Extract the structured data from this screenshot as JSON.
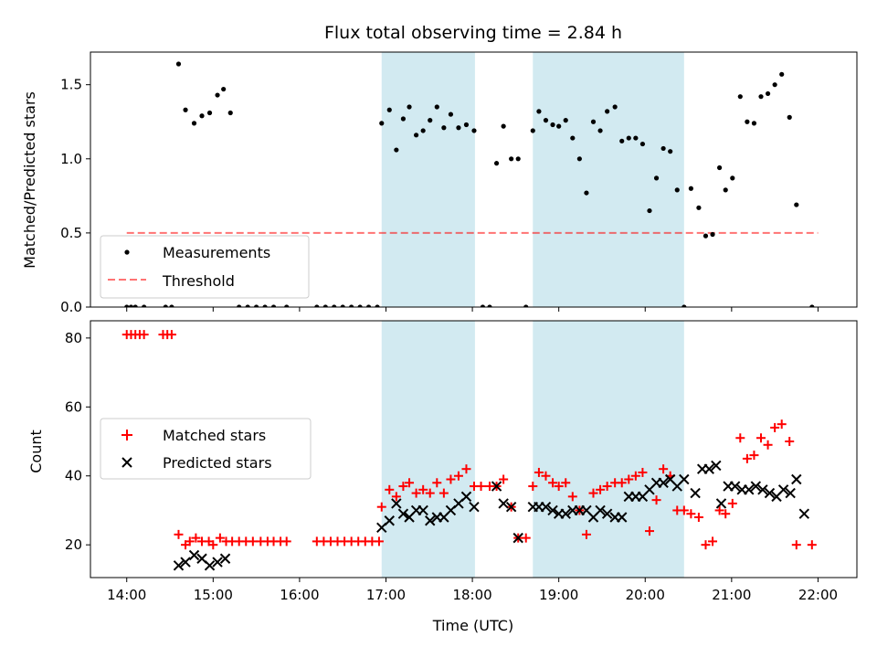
{
  "title": "Flux total observing time = 2.84 h",
  "colors": {
    "shade": "#add8e6",
    "measurement": "#000000",
    "threshold": "#ff0000",
    "matched": "#ff0000",
    "predicted": "#000000"
  },
  "chart_data": [
    {
      "type": "scatter",
      "panel": "top",
      "title": "Flux total observing time = 2.84 h",
      "xlabel": "",
      "ylabel": "Matched/Predicted stars",
      "xlim": [
        13.58,
        22.45
      ],
      "ylim": [
        0,
        1.72
      ],
      "yticks": [
        0.0,
        0.5,
        1.0,
        1.5
      ],
      "ytick_labels": [
        "0.0",
        "0.5",
        "1.0",
        "1.5"
      ],
      "shaded_time_ranges": [
        [
          16.95,
          18.03
        ],
        [
          18.7,
          20.45
        ]
      ],
      "legend_position": "lower-left",
      "series": [
        {
          "name": "Measurements",
          "marker": "dot",
          "points": [
            [
              14.0,
              0
            ],
            [
              14.05,
              0
            ],
            [
              14.1,
              0
            ],
            [
              14.2,
              0
            ],
            [
              14.45,
              0
            ],
            [
              14.52,
              0
            ],
            [
              14.6,
              1.64
            ],
            [
              14.68,
              1.33
            ],
            [
              14.78,
              1.24
            ],
            [
              14.87,
              1.29
            ],
            [
              14.96,
              1.31
            ],
            [
              15.05,
              1.43
            ],
            [
              15.12,
              1.47
            ],
            [
              15.2,
              1.31
            ],
            [
              15.3,
              0
            ],
            [
              15.4,
              0
            ],
            [
              15.5,
              0
            ],
            [
              15.6,
              0
            ],
            [
              15.7,
              0
            ],
            [
              15.85,
              0
            ],
            [
              16.2,
              0
            ],
            [
              16.3,
              0
            ],
            [
              16.4,
              0
            ],
            [
              16.5,
              0
            ],
            [
              16.6,
              0
            ],
            [
              16.7,
              0
            ],
            [
              16.8,
              0
            ],
            [
              16.9,
              0
            ],
            [
              16.95,
              1.24
            ],
            [
              17.04,
              1.33
            ],
            [
              17.12,
              1.06
            ],
            [
              17.2,
              1.27
            ],
            [
              17.27,
              1.35
            ],
            [
              17.35,
              1.16
            ],
            [
              17.43,
              1.19
            ],
            [
              17.51,
              1.26
            ],
            [
              17.59,
              1.35
            ],
            [
              17.67,
              1.21
            ],
            [
              17.75,
              1.3
            ],
            [
              17.84,
              1.21
            ],
            [
              17.93,
              1.23
            ],
            [
              18.02,
              1.19
            ],
            [
              18.12,
              0
            ],
            [
              18.2,
              0
            ],
            [
              18.28,
              0.97
            ],
            [
              18.36,
              1.22
            ],
            [
              18.45,
              1.0
            ],
            [
              18.53,
              1.0
            ],
            [
              18.62,
              0
            ],
            [
              18.7,
              1.19
            ],
            [
              18.77,
              1.32
            ],
            [
              18.85,
              1.26
            ],
            [
              18.93,
              1.23
            ],
            [
              19.0,
              1.22
            ],
            [
              19.08,
              1.26
            ],
            [
              19.16,
              1.14
            ],
            [
              19.24,
              1.0
            ],
            [
              19.32,
              0.77
            ],
            [
              19.4,
              1.25
            ],
            [
              19.48,
              1.19
            ],
            [
              19.56,
              1.32
            ],
            [
              19.65,
              1.35
            ],
            [
              19.73,
              1.12
            ],
            [
              19.81,
              1.14
            ],
            [
              19.89,
              1.14
            ],
            [
              19.97,
              1.1
            ],
            [
              20.05,
              0.65
            ],
            [
              20.13,
              0.87
            ],
            [
              20.21,
              1.07
            ],
            [
              20.29,
              1.05
            ],
            [
              20.37,
              0.79
            ],
            [
              20.45,
              0
            ],
            [
              20.53,
              0.8
            ],
            [
              20.62,
              0.67
            ],
            [
              20.7,
              0.48
            ],
            [
              20.78,
              0.49
            ],
            [
              20.86,
              0.94
            ],
            [
              20.93,
              0.79
            ],
            [
              21.01,
              0.87
            ],
            [
              21.1,
              1.42
            ],
            [
              21.18,
              1.25
            ],
            [
              21.26,
              1.24
            ],
            [
              21.34,
              1.42
            ],
            [
              21.42,
              1.44
            ],
            [
              21.5,
              1.5
            ],
            [
              21.58,
              1.57
            ],
            [
              21.67,
              1.28
            ],
            [
              21.75,
              0.69
            ],
            [
              21.93,
              0
            ]
          ]
        },
        {
          "name": "Threshold",
          "style": "dashed",
          "points": [
            [
              14.0,
              0.5
            ],
            [
              22.0,
              0.5
            ]
          ]
        }
      ]
    },
    {
      "type": "scatter",
      "panel": "bottom",
      "title": "",
      "xlabel": "Time (UTC)",
      "ylabel": "Count",
      "xlim": [
        13.58,
        22.45
      ],
      "ylim": [
        10.5,
        85
      ],
      "yticks": [
        20,
        40,
        60,
        80
      ],
      "ytick_labels": [
        "20",
        "40",
        "60",
        "80"
      ],
      "xticks": [
        14,
        15,
        16,
        17,
        18,
        19,
        20,
        21,
        22
      ],
      "xtick_labels": [
        "14:00",
        "15:00",
        "16:00",
        "17:00",
        "18:00",
        "19:00",
        "20:00",
        "21:00",
        "22:00"
      ],
      "shaded_time_ranges": [
        [
          16.95,
          18.03
        ],
        [
          18.7,
          20.45
        ]
      ],
      "legend_position": "center-left",
      "series": [
        {
          "name": "Matched stars",
          "marker": "plus",
          "points": [
            [
              14.0,
              81
            ],
            [
              14.05,
              81
            ],
            [
              14.1,
              81
            ],
            [
              14.15,
              81
            ],
            [
              14.2,
              81
            ],
            [
              14.42,
              81
            ],
            [
              14.47,
              81
            ],
            [
              14.52,
              81
            ],
            [
              14.6,
              23
            ],
            [
              14.68,
              20
            ],
            [
              14.73,
              21
            ],
            [
              14.8,
              22
            ],
            [
              14.87,
              21
            ],
            [
              14.95,
              21
            ],
            [
              15.0,
              20
            ],
            [
              15.08,
              22
            ],
            [
              15.15,
              21
            ],
            [
              15.22,
              21
            ],
            [
              15.3,
              21
            ],
            [
              15.38,
              21
            ],
            [
              15.46,
              21
            ],
            [
              15.55,
              21
            ],
            [
              15.63,
              21
            ],
            [
              15.7,
              21
            ],
            [
              15.78,
              21
            ],
            [
              15.85,
              21
            ],
            [
              16.2,
              21
            ],
            [
              16.28,
              21
            ],
            [
              16.36,
              21
            ],
            [
              16.44,
              21
            ],
            [
              16.52,
              21
            ],
            [
              16.6,
              21
            ],
            [
              16.68,
              21
            ],
            [
              16.76,
              21
            ],
            [
              16.84,
              21
            ],
            [
              16.92,
              21
            ],
            [
              16.95,
              31
            ],
            [
              17.04,
              36
            ],
            [
              17.12,
              34
            ],
            [
              17.2,
              37
            ],
            [
              17.27,
              38
            ],
            [
              17.35,
              35
            ],
            [
              17.43,
              36
            ],
            [
              17.51,
              35
            ],
            [
              17.59,
              38
            ],
            [
              17.67,
              35
            ],
            [
              17.75,
              39
            ],
            [
              17.84,
              40
            ],
            [
              17.93,
              42
            ],
            [
              18.02,
              37
            ],
            [
              18.1,
              37
            ],
            [
              18.2,
              37
            ],
            [
              18.28,
              37
            ],
            [
              18.36,
              39
            ],
            [
              18.45,
              31
            ],
            [
              18.53,
              22
            ],
            [
              18.62,
              22
            ],
            [
              18.7,
              37
            ],
            [
              18.77,
              41
            ],
            [
              18.85,
              40
            ],
            [
              18.93,
              38
            ],
            [
              19.0,
              37
            ],
            [
              19.08,
              38
            ],
            [
              19.16,
              34
            ],
            [
              19.24,
              30
            ],
            [
              19.32,
              23
            ],
            [
              19.4,
              35
            ],
            [
              19.48,
              36
            ],
            [
              19.56,
              37
            ],
            [
              19.65,
              38
            ],
            [
              19.73,
              38
            ],
            [
              19.81,
              39
            ],
            [
              19.89,
              40
            ],
            [
              19.97,
              41
            ],
            [
              20.05,
              24
            ],
            [
              20.13,
              33
            ],
            [
              20.21,
              42
            ],
            [
              20.29,
              40
            ],
            [
              20.37,
              30
            ],
            [
              20.45,
              30
            ],
            [
              20.53,
              29
            ],
            [
              20.62,
              28
            ],
            [
              20.7,
              20
            ],
            [
              20.78,
              21
            ],
            [
              20.86,
              30
            ],
            [
              20.93,
              29
            ],
            [
              21.01,
              32
            ],
            [
              21.1,
              51
            ],
            [
              21.18,
              45
            ],
            [
              21.26,
              46
            ],
            [
              21.34,
              51
            ],
            [
              21.42,
              49
            ],
            [
              21.5,
              54
            ],
            [
              21.58,
              55
            ],
            [
              21.67,
              50
            ],
            [
              21.75,
              20
            ],
            [
              21.93,
              20
            ]
          ]
        },
        {
          "name": "Predicted stars",
          "marker": "x",
          "points": [
            [
              14.6,
              14
            ],
            [
              14.68,
              15
            ],
            [
              14.78,
              17
            ],
            [
              14.87,
              16
            ],
            [
              14.96,
              14
            ],
            [
              15.05,
              15
            ],
            [
              15.14,
              16
            ],
            [
              16.95,
              25
            ],
            [
              17.04,
              27
            ],
            [
              17.12,
              32
            ],
            [
              17.2,
              29
            ],
            [
              17.27,
              28
            ],
            [
              17.35,
              30
            ],
            [
              17.43,
              30
            ],
            [
              17.51,
              27
            ],
            [
              17.59,
              28
            ],
            [
              17.67,
              28
            ],
            [
              17.75,
              30
            ],
            [
              17.84,
              32
            ],
            [
              17.93,
              34
            ],
            [
              18.02,
              31
            ],
            [
              18.28,
              37
            ],
            [
              18.36,
              32
            ],
            [
              18.45,
              31
            ],
            [
              18.53,
              22
            ],
            [
              18.7,
              31
            ],
            [
              18.77,
              31
            ],
            [
              18.85,
              31
            ],
            [
              18.93,
              30
            ],
            [
              19.0,
              29
            ],
            [
              19.08,
              29
            ],
            [
              19.16,
              30
            ],
            [
              19.24,
              30
            ],
            [
              19.32,
              30
            ],
            [
              19.4,
              28
            ],
            [
              19.48,
              30
            ],
            [
              19.56,
              29
            ],
            [
              19.65,
              28
            ],
            [
              19.73,
              28
            ],
            [
              19.81,
              34
            ],
            [
              19.89,
              34
            ],
            [
              19.97,
              34
            ],
            [
              20.05,
              36
            ],
            [
              20.13,
              38
            ],
            [
              20.21,
              38
            ],
            [
              20.29,
              39
            ],
            [
              20.37,
              37
            ],
            [
              20.45,
              39
            ],
            [
              20.58,
              35
            ],
            [
              20.66,
              42
            ],
            [
              20.74,
              42
            ],
            [
              20.82,
              43
            ],
            [
              20.88,
              32
            ],
            [
              20.96,
              37
            ],
            [
              21.04,
              37
            ],
            [
              21.12,
              36
            ],
            [
              21.2,
              36
            ],
            [
              21.28,
              37
            ],
            [
              21.36,
              36
            ],
            [
              21.44,
              35
            ],
            [
              21.52,
              34
            ],
            [
              21.6,
              36
            ],
            [
              21.68,
              35
            ],
            [
              21.75,
              39
            ],
            [
              21.84,
              29
            ]
          ]
        }
      ]
    }
  ]
}
